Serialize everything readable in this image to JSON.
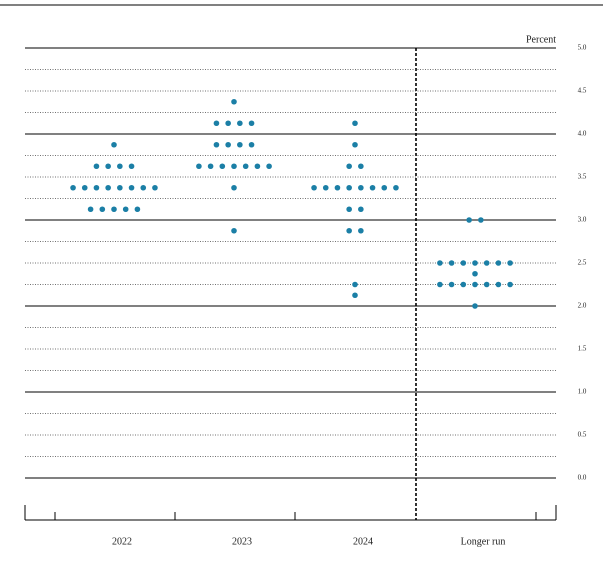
{
  "chart_data": {
    "type": "dot",
    "y_axis_label": "Percent",
    "categories": [
      "2022",
      "2023",
      "2024",
      "Longer run"
    ],
    "values": [
      [
        3.875,
        3.625,
        3.625,
        3.625,
        3.625,
        3.375,
        3.375,
        3.375,
        3.375,
        3.375,
        3.375,
        3.375,
        3.375,
        3.125,
        3.125,
        3.125,
        3.125,
        3.125
      ],
      [
        4.375,
        4.125,
        4.125,
        4.125,
        4.125,
        3.875,
        3.875,
        3.875,
        3.875,
        3.625,
        3.625,
        3.625,
        3.625,
        3.625,
        3.625,
        3.625,
        3.375,
        2.875
      ],
      [
        4.125,
        3.875,
        3.625,
        3.625,
        3.375,
        3.375,
        3.375,
        3.375,
        3.375,
        3.375,
        3.375,
        3.375,
        3.125,
        3.125,
        2.875,
        2.875,
        2.25,
        2.125
      ],
      [
        3.0,
        3.0,
        2.5,
        2.5,
        2.5,
        2.5,
        2.5,
        2.5,
        2.5,
        2.375,
        2.25,
        2.25,
        2.25,
        2.25,
        2.25,
        2.25,
        2.25,
        2.0
      ]
    ],
    "color": "#1b7fa6",
    "ylim": [
      0,
      5
    ],
    "yticks": [
      {
        "value": 0,
        "label": "0.0"
      },
      {
        "value": 0.5,
        "label": "0.5"
      },
      {
        "value": 1,
        "label": "1.0"
      },
      {
        "value": 1.5,
        "label": "1.5"
      },
      {
        "value": 2,
        "label": "2.0"
      },
      {
        "value": 2.5,
        "label": "2.5"
      },
      {
        "value": 3,
        "label": "3.0"
      },
      {
        "value": 3.5,
        "label": "3.5"
      },
      {
        "value": 4,
        "label": "4.0"
      },
      {
        "value": 4.5,
        "label": "4.5"
      },
      {
        "value": 5,
        "label": "5.0"
      }
    ],
    "minor_yticks": [
      0.25,
      0.75,
      1.25,
      1.75,
      2.25,
      2.75,
      3.25,
      3.75,
      4.25,
      4.75
    ],
    "grid": true
  }
}
